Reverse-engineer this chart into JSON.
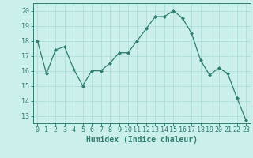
{
  "x": [
    0,
    1,
    2,
    3,
    4,
    5,
    6,
    7,
    8,
    9,
    10,
    11,
    12,
    13,
    14,
    15,
    16,
    17,
    18,
    19,
    20,
    21,
    22,
    23
  ],
  "y": [
    18.0,
    15.8,
    17.4,
    17.6,
    16.1,
    15.0,
    16.0,
    16.0,
    16.5,
    17.2,
    17.2,
    18.0,
    18.8,
    19.6,
    19.6,
    20.0,
    19.5,
    18.5,
    16.7,
    15.7,
    16.2,
    15.8,
    14.2,
    12.7
  ],
  "line_color": "#2E7D6E",
  "marker": "D",
  "marker_size": 2,
  "bg_color": "#CBF0EC",
  "grid_color": "#B0DDD8",
  "axis_color": "#2E7D6E",
  "xlabel": "Humidex (Indice chaleur)",
  "xlabel_fontsize": 7,
  "tick_fontsize": 6,
  "ylim": [
    12.5,
    20.5
  ],
  "xlim": [
    -0.5,
    23.5
  ],
  "yticks": [
    13,
    14,
    15,
    16,
    17,
    18,
    19,
    20
  ],
  "xticks": [
    0,
    1,
    2,
    3,
    4,
    5,
    6,
    7,
    8,
    9,
    10,
    11,
    12,
    13,
    14,
    15,
    16,
    17,
    18,
    19,
    20,
    21,
    22,
    23
  ],
  "line_width": 0.9
}
